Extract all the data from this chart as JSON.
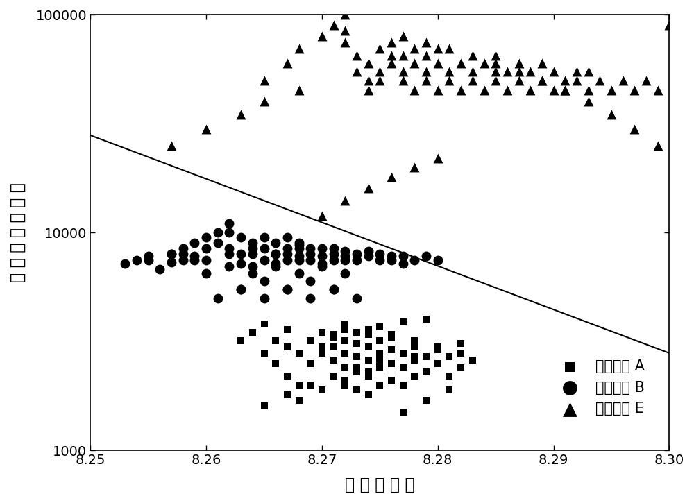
{
  "title": "",
  "xlabel": "聚 集 系 数 熵",
  "ylabel": "时 频 分 布 偏 差 值",
  "xlim": [
    8.25,
    8.3
  ],
  "ylim": [
    1000,
    100000
  ],
  "xticks": [
    8.25,
    8.26,
    8.27,
    8.28,
    8.29,
    8.3
  ],
  "background_color": "#ffffff",
  "line_color": "#000000",
  "marker_color": "#000000",
  "legend_labels": [
    "脑电信号 A",
    "脑电信号 B",
    "脑电信号 E"
  ],
  "A_x": [
    8.263,
    8.264,
    8.265,
    8.265,
    8.266,
    8.266,
    8.267,
    8.267,
    8.267,
    8.268,
    8.268,
    8.269,
    8.269,
    8.27,
    8.27,
    8.27,
    8.271,
    8.271,
    8.271,
    8.271,
    8.272,
    8.272,
    8.272,
    8.272,
    8.272,
    8.273,
    8.273,
    8.273,
    8.273,
    8.273,
    8.274,
    8.274,
    8.274,
    8.274,
    8.274,
    8.275,
    8.275,
    8.275,
    8.275,
    8.276,
    8.276,
    8.276,
    8.276,
    8.277,
    8.277,
    8.277,
    8.278,
    8.278,
    8.278,
    8.279,
    8.279,
    8.28,
    8.28,
    8.281,
    8.281,
    8.282,
    8.282,
    8.283,
    8.268,
    8.27,
    8.272,
    8.274,
    8.276,
    8.278,
    8.28,
    8.282,
    8.271,
    8.273,
    8.275,
    8.277,
    8.279,
    8.272,
    8.274,
    8.276,
    8.278,
    8.28,
    8.265,
    8.267,
    8.269,
    8.271,
    8.273,
    8.275,
    8.277,
    8.279,
    8.281
  ],
  "A_y": [
    3200,
    3500,
    2800,
    3800,
    2500,
    3200,
    2200,
    3000,
    3600,
    2000,
    2800,
    2500,
    3200,
    3500,
    2800,
    3000,
    2200,
    2600,
    3000,
    3400,
    2000,
    2400,
    2800,
    3200,
    3600,
    1900,
    2300,
    2700,
    3100,
    3500,
    1800,
    2200,
    2600,
    3000,
    3400,
    2000,
    2400,
    2800,
    3200,
    2100,
    2500,
    2900,
    3300,
    2000,
    2400,
    2800,
    2200,
    2600,
    3000,
    2300,
    2700,
    2500,
    3000,
    2200,
    2700,
    2400,
    2800,
    2600,
    1700,
    1900,
    2100,
    2300,
    2500,
    2700,
    2900,
    3100,
    3300,
    3500,
    3700,
    3900,
    4000,
    3800,
    3600,
    3400,
    3200,
    3000,
    1600,
    1800,
    2000,
    2200,
    2400,
    2600,
    1500,
    1700,
    1900
  ],
  "B_x": [
    8.253,
    8.254,
    8.255,
    8.256,
    8.257,
    8.257,
    8.258,
    8.258,
    8.259,
    8.259,
    8.26,
    8.26,
    8.261,
    8.261,
    8.262,
    8.262,
    8.262,
    8.263,
    8.263,
    8.263,
    8.264,
    8.264,
    8.264,
    8.265,
    8.265,
    8.265,
    8.266,
    8.266,
    8.266,
    8.267,
    8.267,
    8.267,
    8.267,
    8.268,
    8.268,
    8.268,
    8.268,
    8.269,
    8.269,
    8.269,
    8.27,
    8.27,
    8.27,
    8.271,
    8.271,
    8.271,
    8.272,
    8.272,
    8.272,
    8.273,
    8.273,
    8.274,
    8.274,
    8.275,
    8.275,
    8.276,
    8.276,
    8.277,
    8.277,
    8.278,
    8.279,
    8.28,
    8.263,
    8.265,
    8.267,
    8.269,
    8.271,
    8.26,
    8.262,
    8.264,
    8.266,
    8.268,
    8.27,
    8.272,
    8.258,
    8.26,
    8.262,
    8.264,
    8.266,
    8.268,
    8.261,
    8.263,
    8.265,
    8.267,
    8.269,
    8.271,
    8.273,
    8.255,
    8.257,
    8.259
  ],
  "B_y": [
    7200,
    7500,
    7800,
    6800,
    7300,
    8000,
    7500,
    8500,
    7800,
    9000,
    8500,
    9500,
    10000,
    9000,
    11000,
    10000,
    8500,
    9500,
    8000,
    7200,
    9000,
    8000,
    7000,
    9500,
    8500,
    7500,
    9000,
    8000,
    7200,
    8500,
    7500,
    9500,
    8000,
    8800,
    7800,
    9000,
    7500,
    8500,
    7500,
    8000,
    7800,
    8500,
    7200,
    8000,
    7500,
    8500,
    7800,
    8200,
    7500,
    8000,
    7500,
    7800,
    8200,
    7500,
    8000,
    7500,
    7800,
    7200,
    7800,
    7500,
    7800,
    7500,
    5500,
    6000,
    5500,
    6000,
    5500,
    6500,
    7000,
    6500,
    7000,
    6500,
    7000,
    6500,
    8000,
    7500,
    8000,
    8500,
    8000,
    8500,
    5000,
    5500,
    5000,
    5500,
    5000,
    5500,
    5000,
    7500,
    8000,
    7500
  ],
  "E_x": [
    8.257,
    8.26,
    8.263,
    8.265,
    8.265,
    8.267,
    8.268,
    8.268,
    8.27,
    8.271,
    8.272,
    8.272,
    8.272,
    8.273,
    8.273,
    8.274,
    8.274,
    8.274,
    8.275,
    8.275,
    8.275,
    8.276,
    8.276,
    8.276,
    8.277,
    8.277,
    8.277,
    8.278,
    8.278,
    8.278,
    8.279,
    8.279,
    8.279,
    8.28,
    8.28,
    8.28,
    8.281,
    8.281,
    8.282,
    8.282,
    8.283,
    8.283,
    8.284,
    8.284,
    8.285,
    8.285,
    8.285,
    8.286,
    8.286,
    8.287,
    8.287,
    8.288,
    8.288,
    8.289,
    8.289,
    8.29,
    8.29,
    8.291,
    8.291,
    8.292,
    8.292,
    8.293,
    8.293,
    8.294,
    8.295,
    8.296,
    8.297,
    8.298,
    8.299,
    8.3,
    8.277,
    8.279,
    8.281,
    8.283,
    8.285,
    8.287,
    8.289,
    8.291,
    8.293,
    8.295,
    8.297,
    8.299,
    8.27,
    8.272,
    8.274,
    8.276,
    8.278,
    8.28
  ],
  "E_y": [
    25000,
    30000,
    35000,
    50000,
    40000,
    60000,
    45000,
    70000,
    80000,
    90000,
    100000,
    85000,
    75000,
    65000,
    55000,
    50000,
    45000,
    60000,
    55000,
    50000,
    70000,
    65000,
    75000,
    60000,
    55000,
    65000,
    50000,
    60000,
    45000,
    70000,
    55000,
    65000,
    50000,
    60000,
    45000,
    70000,
    55000,
    50000,
    60000,
    45000,
    55000,
    50000,
    60000,
    45000,
    55000,
    50000,
    65000,
    45000,
    55000,
    60000,
    50000,
    45000,
    55000,
    50000,
    60000,
    45000,
    55000,
    50000,
    45000,
    55000,
    50000,
    45000,
    55000,
    50000,
    45000,
    50000,
    45000,
    50000,
    45000,
    90000,
    80000,
    75000,
    70000,
    65000,
    60000,
    55000,
    50000,
    45000,
    40000,
    35000,
    30000,
    25000,
    12000,
    14000,
    16000,
    18000,
    20000,
    22000
  ],
  "line_x": [
    8.25,
    8.3
  ],
  "line_y": [
    28000,
    2800
  ],
  "markersize_A": 7,
  "markersize_B": 10,
  "markersize_E": 10,
  "fontsize_labels": 17,
  "fontsize_ticks": 14,
  "fontsize_legend": 15
}
